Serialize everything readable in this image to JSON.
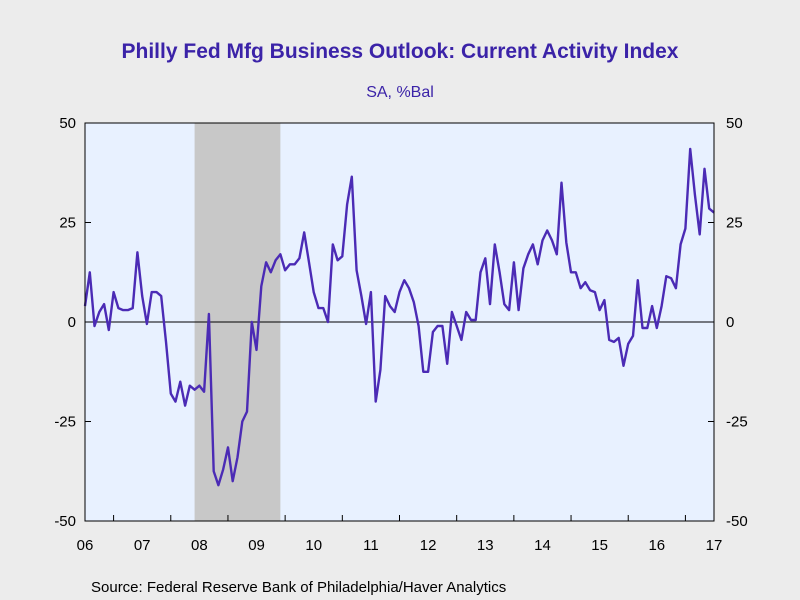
{
  "chart_data": {
    "type": "line",
    "title": "Philly Fed Mfg Business Outlook: Current Activity Index",
    "subtitle": "SA, %Bal",
    "source": "Source:  Federal Reserve Bank of Philadelphia/Haver Analytics",
    "x_start": "2006-01",
    "x_end": "2017-01",
    "x_ticks": [
      "06",
      "07",
      "08",
      "09",
      "10",
      "11",
      "12",
      "13",
      "14",
      "15",
      "16",
      "17"
    ],
    "ylim": [
      -50,
      50
    ],
    "y_ticks": [
      50,
      25,
      0,
      -25,
      -50
    ],
    "y_tick_labels": [
      "50",
      "25",
      "0",
      "-25",
      "-50"
    ],
    "recession": {
      "start": "2007-12",
      "end": "2009-06",
      "color": "#c8c8c8"
    },
    "zero_line": true,
    "colors": {
      "line": "#4b2bb5",
      "title": "#3b23a8",
      "plot_bg": "#e8f1ff",
      "page_bg": "#ececec"
    },
    "series": [
      {
        "x": [
          "2006-01",
          "2006-02",
          "2006-03",
          "2006-04",
          "2006-05",
          "2006-06",
          "2006-07",
          "2006-08",
          "2006-09",
          "2006-10",
          "2006-11",
          "2006-12",
          "2007-01",
          "2007-02",
          "2007-03",
          "2007-04",
          "2007-05",
          "2007-06",
          "2007-07",
          "2007-08",
          "2007-09",
          "2007-10",
          "2007-11",
          "2007-12",
          "2008-01",
          "2008-02",
          "2008-03",
          "2008-04",
          "2008-05",
          "2008-06",
          "2008-07",
          "2008-08",
          "2008-09",
          "2008-10",
          "2008-11",
          "2008-12",
          "2009-01",
          "2009-02",
          "2009-03",
          "2009-04",
          "2009-05",
          "2009-06",
          "2009-07",
          "2009-08",
          "2009-09",
          "2009-10",
          "2009-11",
          "2009-12",
          "2010-01",
          "2010-02",
          "2010-03",
          "2010-04",
          "2010-05",
          "2010-06",
          "2010-07",
          "2010-08",
          "2010-09",
          "2010-10",
          "2010-11",
          "2010-12",
          "2011-01",
          "2011-02",
          "2011-03",
          "2011-04",
          "2011-05",
          "2011-06",
          "2011-07",
          "2011-08",
          "2011-09",
          "2011-10",
          "2011-11",
          "2011-12",
          "2012-01",
          "2012-02",
          "2012-03",
          "2012-04",
          "2012-05",
          "2012-06",
          "2012-07",
          "2012-08",
          "2012-09",
          "2012-10",
          "2012-11",
          "2012-12",
          "2013-01",
          "2013-02",
          "2013-03",
          "2013-04",
          "2013-05",
          "2013-06",
          "2013-07",
          "2013-08",
          "2013-09",
          "2013-10",
          "2013-11",
          "2013-12",
          "2014-01",
          "2014-02",
          "2014-03",
          "2014-04",
          "2014-05",
          "2014-06",
          "2014-07",
          "2014-08",
          "2014-09",
          "2014-10",
          "2014-11",
          "2014-12",
          "2015-01",
          "2015-02",
          "2015-03",
          "2015-04",
          "2015-05",
          "2015-06",
          "2015-07",
          "2015-08",
          "2015-09",
          "2015-10",
          "2015-11",
          "2015-12",
          "2016-01",
          "2016-02",
          "2016-03",
          "2016-04",
          "2016-05",
          "2016-06",
          "2016-07",
          "2016-08",
          "2016-09",
          "2016-10",
          "2016-11",
          "2016-12",
          "2017-01"
        ],
        "y": [
          4,
          12.5,
          -1,
          2.5,
          4.5,
          -2,
          7.5,
          3.5,
          3,
          3,
          3.5,
          17.5,
          6.5,
          -0.5,
          7.5,
          7.5,
          6.5,
          -5,
          -18,
          -20,
          -15,
          -21,
          -16,
          -17,
          -16,
          -17.5,
          2,
          -37.5,
          -41,
          -37,
          -31.5,
          -40,
          -34,
          -25,
          -22.5,
          0,
          -7,
          9,
          15,
          12.5,
          15.5,
          17,
          13,
          14.5,
          14.5,
          16,
          22.5,
          15,
          7.5,
          3.5,
          3.5,
          0,
          19.5,
          15.5,
          16.5,
          29.5,
          36.5,
          13,
          6.5,
          -0.5,
          7.5,
          -20,
          -12,
          6.5,
          4,
          2.5,
          7.5,
          10.5,
          8.5,
          5,
          -1,
          -12.5,
          -12.5,
          -2.5,
          -1,
          -1,
          -10.5,
          2.5,
          -1,
          -4.5,
          2.5,
          0.5,
          0.5,
          12.5,
          16,
          4.5,
          19.5,
          12.5,
          4.5,
          3,
          15,
          3,
          13.5,
          17,
          19.5,
          14.5,
          20.5,
          23,
          20.5,
          17,
          35,
          20,
          12.5,
          12.5,
          8.5,
          10,
          8,
          7.5,
          3,
          5.5,
          -4.5,
          -5,
          -4,
          -11,
          -5.5,
          -3.5,
          10.5,
          -1.5,
          -1.5,
          4,
          -1.5,
          4,
          11.5,
          11,
          8.5,
          19.5,
          23.5,
          43.5,
          32,
          22,
          38.5,
          28.5,
          27.5
        ]
      }
    ]
  }
}
